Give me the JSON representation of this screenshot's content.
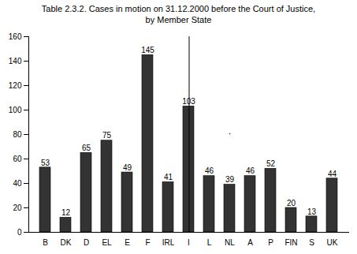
{
  "chart_data": {
    "type": "bar",
    "title": "Table 2.3.2. Cases in motion on 31.12.2000 before the Court of Justice,\nby Member State",
    "categories": [
      "B",
      "DK",
      "D",
      "EL",
      "E",
      "F",
      "IRL",
      "I",
      "L",
      "NL",
      "A",
      "P",
      "FIN",
      "S",
      "UK"
    ],
    "values": [
      53,
      12,
      65,
      75,
      49,
      145,
      41,
      103,
      46,
      39,
      46,
      52,
      20,
      13,
      44
    ],
    "color": "#333333",
    "ylim": [
      0,
      160
    ],
    "yticks": [
      0,
      20,
      40,
      60,
      80,
      100,
      120,
      140,
      160
    ],
    "grid": false,
    "data_labels": true,
    "annotations": [
      {
        "text": "·",
        "x": "NL",
        "y": 78
      }
    ]
  }
}
